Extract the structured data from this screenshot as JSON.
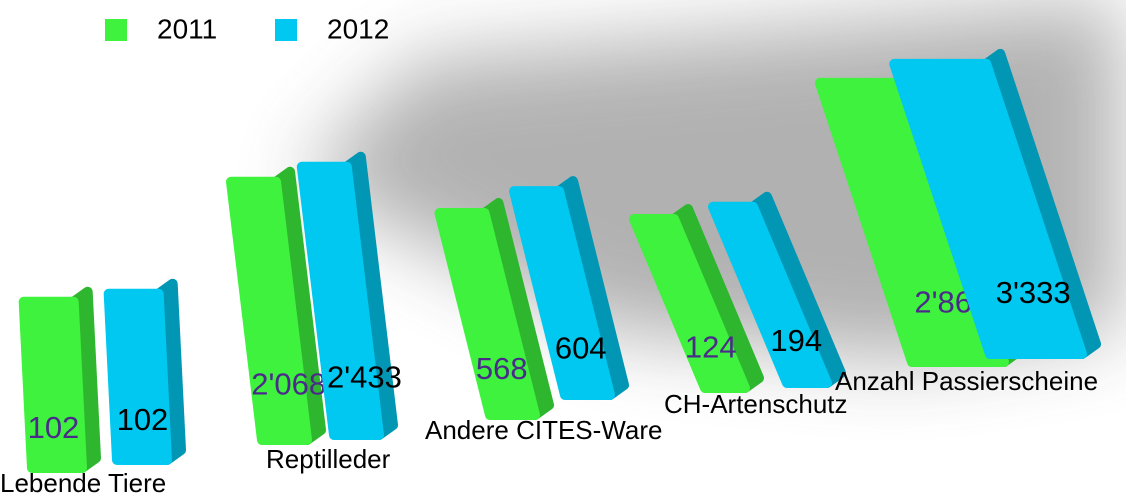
{
  "chart_data": {
    "type": "bar3d",
    "categories": [
      "Lebende Tiere",
      "Reptilleder",
      "Andere CITES-Ware",
      "CH-Artenschutz",
      "Anzahl Passierscheine"
    ],
    "series": [
      {
        "name": "2011",
        "color": "#3ef23e",
        "label_color": "#4b2a8a",
        "values": [
          102,
          2068,
          568,
          124,
          2862
        ],
        "value_labels": [
          "102",
          "2'068",
          "568",
          "124",
          "2'862"
        ]
      },
      {
        "name": "2012",
        "color": "#00c8f0",
        "label_color": "#000000",
        "values": [
          102,
          2433,
          604,
          194,
          3333
        ],
        "value_labels": [
          "102",
          "2'433",
          "604",
          "194",
          "3'333"
        ]
      }
    ],
    "legend": "top-left"
  }
}
